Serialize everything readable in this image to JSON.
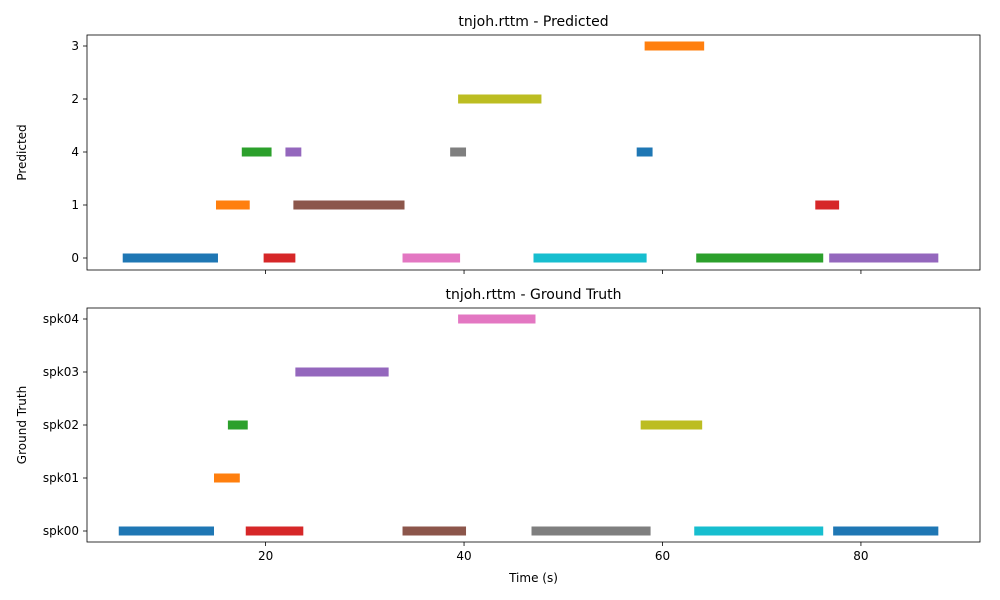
{
  "chart_data": [
    {
      "type": "broken_barh",
      "title": "tnjoh.rttm - Predicted",
      "xlabel": "",
      "ylabel": "Predicted",
      "xlim": [
        2.0,
        92.0
      ],
      "x_ticks": [
        20,
        40,
        60,
        80
      ],
      "x_tick_labels_shown": false,
      "y_categories": [
        "0",
        "1",
        "4",
        "2",
        "3"
      ],
      "grid": false,
      "segments": [
        {
          "speaker": "0",
          "start": 5.6,
          "end": 15.2,
          "color": "#1f77b4"
        },
        {
          "speaker": "1",
          "start": 15.0,
          "end": 18.4,
          "color": "#ff7f0e"
        },
        {
          "speaker": "4",
          "start": 17.6,
          "end": 20.6,
          "color": "#2ca02c"
        },
        {
          "speaker": "0",
          "start": 19.8,
          "end": 23.0,
          "color": "#d62728"
        },
        {
          "speaker": "4",
          "start": 22.0,
          "end": 23.6,
          "color": "#9467bd"
        },
        {
          "speaker": "1",
          "start": 22.8,
          "end": 34.0,
          "color": "#8c564b"
        },
        {
          "speaker": "0",
          "start": 33.8,
          "end": 39.6,
          "color": "#e377c2"
        },
        {
          "speaker": "4",
          "start": 38.6,
          "end": 40.2,
          "color": "#7f7f7f"
        },
        {
          "speaker": "2",
          "start": 39.4,
          "end": 47.8,
          "color": "#bcbd22"
        },
        {
          "speaker": "0",
          "start": 47.0,
          "end": 58.4,
          "color": "#17becf"
        },
        {
          "speaker": "4",
          "start": 57.4,
          "end": 59.0,
          "color": "#1f77b4"
        },
        {
          "speaker": "3",
          "start": 58.2,
          "end": 64.2,
          "color": "#ff7f0e"
        },
        {
          "speaker": "0",
          "start": 63.4,
          "end": 76.2,
          "color": "#2ca02c"
        },
        {
          "speaker": "1",
          "start": 75.4,
          "end": 77.8,
          "color": "#d62728"
        },
        {
          "speaker": "0",
          "start": 76.8,
          "end": 87.8,
          "color": "#9467bd"
        }
      ]
    },
    {
      "type": "broken_barh",
      "title": "tnjoh.rttm - Ground Truth",
      "xlabel": "Time (s)",
      "ylabel": "Ground Truth",
      "xlim": [
        2.0,
        92.0
      ],
      "x_ticks": [
        20,
        40,
        60,
        80
      ],
      "x_tick_labels_shown": true,
      "y_categories": [
        "spk00",
        "spk01",
        "spk02",
        "spk03",
        "spk04"
      ],
      "grid": false,
      "segments": [
        {
          "speaker": "spk00",
          "start": 5.2,
          "end": 14.8,
          "color": "#1f77b4"
        },
        {
          "speaker": "spk01",
          "start": 14.8,
          "end": 17.4,
          "color": "#ff7f0e"
        },
        {
          "speaker": "spk02",
          "start": 16.2,
          "end": 18.2,
          "color": "#2ca02c"
        },
        {
          "speaker": "spk00",
          "start": 18.0,
          "end": 23.8,
          "color": "#d62728"
        },
        {
          "speaker": "spk03",
          "start": 23.0,
          "end": 32.4,
          "color": "#9467bd"
        },
        {
          "speaker": "spk00",
          "start": 33.8,
          "end": 40.2,
          "color": "#8c564b"
        },
        {
          "speaker": "spk04",
          "start": 39.4,
          "end": 47.2,
          "color": "#e377c2"
        },
        {
          "speaker": "spk00",
          "start": 46.8,
          "end": 58.8,
          "color": "#7f7f7f"
        },
        {
          "speaker": "spk02",
          "start": 57.8,
          "end": 64.0,
          "color": "#bcbd22"
        },
        {
          "speaker": "spk00",
          "start": 63.2,
          "end": 76.2,
          "color": "#17becf"
        },
        {
          "speaker": "spk00",
          "start": 77.2,
          "end": 87.8,
          "color": "#1f77b4"
        }
      ]
    }
  ]
}
